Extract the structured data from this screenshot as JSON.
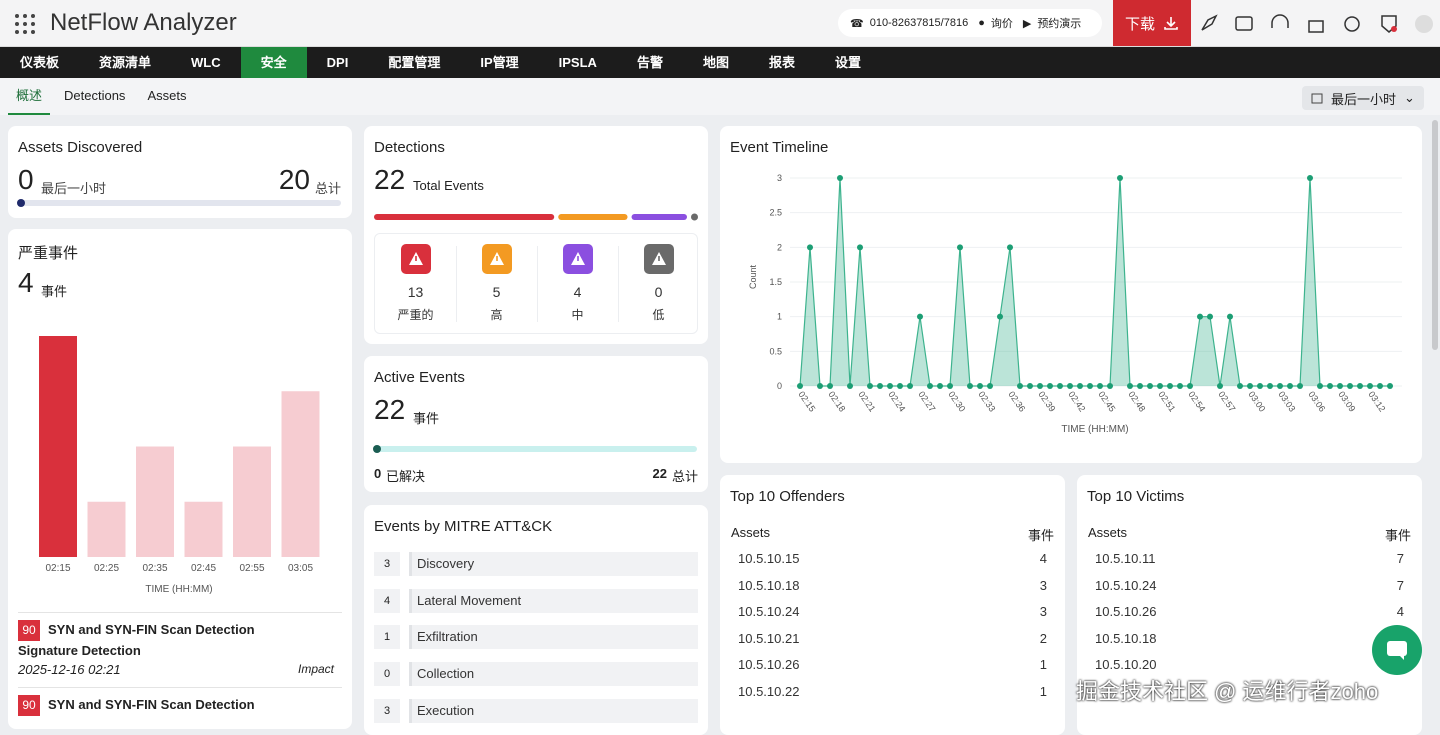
{
  "header": {
    "app_title": "NetFlow Analyzer",
    "phone": "010-82637815/7816",
    "inquiry": "询价",
    "demo": "预约演示",
    "download": "下载"
  },
  "nav": {
    "items": [
      "仪表板",
      "资源清单",
      "WLC",
      "安全",
      "DPI",
      "配置管理",
      "IP管理",
      "IPSLA",
      "告警",
      "地图",
      "报表",
      "设置"
    ],
    "active": 3
  },
  "tabs": {
    "items": [
      "概述",
      "Detections",
      "Assets"
    ],
    "active": 0
  },
  "time_range": "最后一小时",
  "assets_discovered": {
    "title": "Assets Discovered",
    "recent": 0,
    "recent_label": "最后一小时",
    "total": 20,
    "total_label": "总计"
  },
  "severe_events": {
    "title": "严重事件",
    "count": 4,
    "count_label": "事件",
    "chart_data": {
      "type": "bar",
      "categories": [
        "02:15",
        "02:25",
        "02:35",
        "02:45",
        "02:55",
        "03:05"
      ],
      "values": [
        4,
        1,
        2,
        1,
        2,
        3
      ],
      "colors": [
        "#d9303c",
        "#f6ccd1",
        "#f6ccd1",
        "#f6ccd1",
        "#f6ccd1",
        "#f6ccd1"
      ],
      "ylim": [
        0,
        4
      ],
      "xlabel": "TIME (HH:MM)"
    },
    "events": [
      {
        "score": 90,
        "name": "SYN and SYN-FIN Scan Detection",
        "type": "Signature Detection",
        "time": "2025-12-16 02:21",
        "tactic": "Impact"
      },
      {
        "score": 90,
        "name": "SYN and SYN-FIN Scan Detection"
      }
    ]
  },
  "detections": {
    "title": "Detections",
    "total": 22,
    "total_label": "Total Events",
    "severities": [
      {
        "count": 13,
        "label": "严重的",
        "color": "#d9303c"
      },
      {
        "count": 5,
        "label": "高",
        "color": "#f39a22"
      },
      {
        "count": 4,
        "label": "中",
        "color": "#8b4fe0"
      },
      {
        "count": 0,
        "label": "低",
        "color": "#6a6a6a"
      }
    ]
  },
  "active_events": {
    "title": "Active Events",
    "count": 22,
    "count_label": "事件",
    "resolved": 0,
    "resolved_label": "已解决",
    "total": 22,
    "total_label": "总计"
  },
  "mitre": {
    "title": "Events by MITRE ATT&CK",
    "rows": [
      {
        "count": 3,
        "tactic": "Discovery"
      },
      {
        "count": 4,
        "tactic": "Lateral Movement"
      },
      {
        "count": 1,
        "tactic": "Exfiltration"
      },
      {
        "count": 0,
        "tactic": "Collection"
      },
      {
        "count": 3,
        "tactic": "Execution"
      }
    ]
  },
  "event_timeline": {
    "title": "Event Timeline",
    "chart_data": {
      "type": "area",
      "categories": [
        "02:15",
        null,
        null,
        "02:18",
        null,
        null,
        "02:21",
        null,
        null,
        "02:24",
        null,
        null,
        "02:27",
        null,
        null,
        "02:30",
        null,
        null,
        "02:33",
        null,
        null,
        "02:36",
        null,
        null,
        "02:39",
        null,
        null,
        "02:42",
        null,
        null,
        "02:45",
        null,
        null,
        "02:48",
        null,
        null,
        "02:51",
        null,
        null,
        "02:54",
        null,
        null,
        "02:57",
        null,
        null,
        "03:00",
        null,
        null,
        "03:03",
        null,
        null,
        "03:06",
        null,
        null,
        "03:09",
        null,
        null,
        "03:12",
        null,
        null
      ],
      "values": [
        0,
        2,
        0,
        0,
        3,
        0,
        2,
        0,
        0,
        0,
        0,
        0,
        1,
        0,
        0,
        0,
        2,
        0,
        0,
        0,
        1,
        2,
        0,
        0,
        0,
        0,
        0,
        0,
        0,
        0,
        0,
        0,
        3,
        0,
        0,
        0,
        0,
        0,
        0,
        0,
        1,
        1,
        0,
        1,
        0,
        0,
        0,
        0,
        0,
        0,
        0,
        3,
        0,
        0,
        0,
        0,
        0,
        0,
        0,
        0
      ],
      "color": "#3db38e",
      "ylim": [
        0,
        3
      ],
      "yticks": [
        0,
        0.5,
        1,
        1.5,
        2,
        2.5,
        3
      ],
      "ylabel": "Count",
      "xlabel": "TIME (HH:MM)",
      "grid": true
    }
  },
  "top_offenders": {
    "title": "Top 10 Offenders",
    "columns": [
      "Assets",
      "事件"
    ],
    "rows": [
      [
        "10.5.10.15",
        4
      ],
      [
        "10.5.10.18",
        3
      ],
      [
        "10.5.10.24",
        3
      ],
      [
        "10.5.10.21",
        2
      ],
      [
        "10.5.10.26",
        1
      ],
      [
        "10.5.10.22",
        1
      ]
    ]
  },
  "top_victims": {
    "title": "Top 10 Victims",
    "columns": [
      "Assets",
      "事件"
    ],
    "rows": [
      [
        "10.5.10.11",
        7
      ],
      [
        "10.5.10.24",
        7
      ],
      [
        "10.5.10.26",
        4
      ],
      [
        "10.5.10.18"
      ],
      [
        "10.5.10.20"
      ]
    ]
  },
  "watermark": "掘金技术社区 @ 运维行者zoho"
}
